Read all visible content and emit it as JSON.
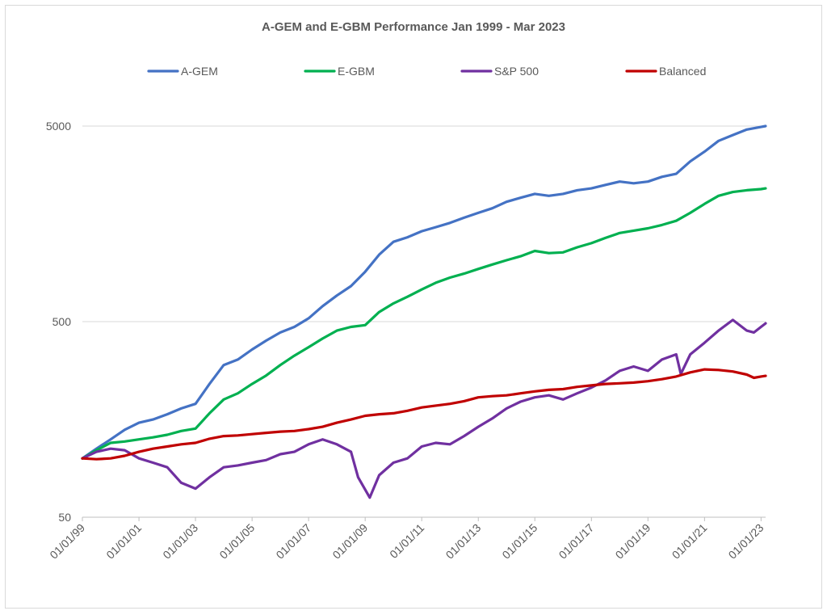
{
  "chart_data": {
    "type": "line",
    "title": "A-GEM and E-GBM Performance Jan 1999 - Mar 2023",
    "xlabel": "",
    "ylabel": "",
    "x_range": [
      "01/01/99",
      "03/01/23"
    ],
    "y_scale": "log",
    "ylim": [
      50,
      5000
    ],
    "y_ticks": [
      "5000",
      "500",
      "50"
    ],
    "x_ticks": [
      "01/01/99",
      "01/01/01",
      "01/01/03",
      "01/01/05",
      "01/01/07",
      "01/01/09",
      "01/01/11",
      "01/01/13",
      "01/01/15",
      "01/01/17",
      "01/01/19",
      "01/01/21",
      "01/01/23"
    ],
    "grid": "horizontal",
    "legend_position": "top",
    "series": [
      {
        "name": "A-GEM",
        "color": "#4472c4",
        "points": [
          [
            "1999-01",
            100
          ],
          [
            "1999-07",
            112
          ],
          [
            "2000-01",
            125
          ],
          [
            "2000-07",
            140
          ],
          [
            "2001-01",
            152
          ],
          [
            "2001-07",
            158
          ],
          [
            "2002-01",
            168
          ],
          [
            "2002-07",
            180
          ],
          [
            "2003-01",
            190
          ],
          [
            "2003-07",
            240
          ],
          [
            "2004-01",
            300
          ],
          [
            "2004-07",
            320
          ],
          [
            "2005-01",
            360
          ],
          [
            "2005-07",
            400
          ],
          [
            "2006-01",
            440
          ],
          [
            "2006-07",
            470
          ],
          [
            "2007-01",
            520
          ],
          [
            "2007-07",
            600
          ],
          [
            "2008-01",
            680
          ],
          [
            "2008-07",
            760
          ],
          [
            "2009-01",
            900
          ],
          [
            "2009-07",
            1100
          ],
          [
            "2010-01",
            1280
          ],
          [
            "2010-07",
            1350
          ],
          [
            "2011-01",
            1450
          ],
          [
            "2011-07",
            1520
          ],
          [
            "2012-01",
            1600
          ],
          [
            "2012-07",
            1700
          ],
          [
            "2013-01",
            1800
          ],
          [
            "2013-07",
            1900
          ],
          [
            "2014-01",
            2050
          ],
          [
            "2014-07",
            2150
          ],
          [
            "2015-01",
            2250
          ],
          [
            "2015-07",
            2200
          ],
          [
            "2016-01",
            2250
          ],
          [
            "2016-07",
            2350
          ],
          [
            "2017-01",
            2400
          ],
          [
            "2017-07",
            2500
          ],
          [
            "2018-01",
            2600
          ],
          [
            "2018-07",
            2550
          ],
          [
            "2019-01",
            2600
          ],
          [
            "2019-07",
            2750
          ],
          [
            "2020-01",
            2850
          ],
          [
            "2020-07",
            3300
          ],
          [
            "2021-01",
            3700
          ],
          [
            "2021-07",
            4200
          ],
          [
            "2022-01",
            4500
          ],
          [
            "2022-07",
            4800
          ],
          [
            "2023-01",
            4950
          ],
          [
            "2023-03",
            5000
          ]
        ]
      },
      {
        "name": "E-GBM",
        "color": "#00b050",
        "points": [
          [
            "1999-01",
            100
          ],
          [
            "1999-07",
            110
          ],
          [
            "2000-01",
            120
          ],
          [
            "2000-07",
            122
          ],
          [
            "2001-01",
            125
          ],
          [
            "2001-07",
            128
          ],
          [
            "2002-01",
            132
          ],
          [
            "2002-07",
            138
          ],
          [
            "2003-01",
            142
          ],
          [
            "2003-07",
            170
          ],
          [
            "2004-01",
            200
          ],
          [
            "2004-07",
            215
          ],
          [
            "2005-01",
            240
          ],
          [
            "2005-07",
            265
          ],
          [
            "2006-01",
            300
          ],
          [
            "2006-07",
            335
          ],
          [
            "2007-01",
            370
          ],
          [
            "2007-07",
            410
          ],
          [
            "2008-01",
            450
          ],
          [
            "2008-07",
            470
          ],
          [
            "2009-01",
            480
          ],
          [
            "2009-07",
            560
          ],
          [
            "2010-01",
            620
          ],
          [
            "2010-07",
            670
          ],
          [
            "2011-01",
            730
          ],
          [
            "2011-07",
            790
          ],
          [
            "2012-01",
            840
          ],
          [
            "2012-07",
            880
          ],
          [
            "2013-01",
            930
          ],
          [
            "2013-07",
            980
          ],
          [
            "2014-01",
            1030
          ],
          [
            "2014-07",
            1080
          ],
          [
            "2015-01",
            1150
          ],
          [
            "2015-07",
            1120
          ],
          [
            "2016-01",
            1130
          ],
          [
            "2016-07",
            1200
          ],
          [
            "2017-01",
            1260
          ],
          [
            "2017-07",
            1340
          ],
          [
            "2018-01",
            1420
          ],
          [
            "2018-07",
            1460
          ],
          [
            "2019-01",
            1500
          ],
          [
            "2019-07",
            1560
          ],
          [
            "2020-01",
            1640
          ],
          [
            "2020-07",
            1800
          ],
          [
            "2021-01",
            2000
          ],
          [
            "2021-07",
            2200
          ],
          [
            "2022-01",
            2300
          ],
          [
            "2022-07",
            2350
          ],
          [
            "2023-01",
            2380
          ],
          [
            "2023-03",
            2400
          ]
        ]
      },
      {
        "name": "S&P 500",
        "color": "#7030a0",
        "points": [
          [
            "1999-01",
            100
          ],
          [
            "1999-07",
            108
          ],
          [
            "2000-01",
            112
          ],
          [
            "2000-07",
            110
          ],
          [
            "2001-01",
            100
          ],
          [
            "2001-07",
            95
          ],
          [
            "2002-01",
            90
          ],
          [
            "2002-07",
            75
          ],
          [
            "2003-01",
            70
          ],
          [
            "2003-07",
            80
          ],
          [
            "2004-01",
            90
          ],
          [
            "2004-07",
            92
          ],
          [
            "2005-01",
            95
          ],
          [
            "2005-07",
            98
          ],
          [
            "2006-01",
            105
          ],
          [
            "2006-07",
            108
          ],
          [
            "2007-01",
            118
          ],
          [
            "2007-07",
            125
          ],
          [
            "2008-01",
            118
          ],
          [
            "2008-07",
            108
          ],
          [
            "2008-10",
            80
          ],
          [
            "2009-03",
            63
          ],
          [
            "2009-07",
            82
          ],
          [
            "2010-01",
            95
          ],
          [
            "2010-07",
            100
          ],
          [
            "2011-01",
            115
          ],
          [
            "2011-07",
            120
          ],
          [
            "2012-01",
            118
          ],
          [
            "2012-07",
            130
          ],
          [
            "2013-01",
            145
          ],
          [
            "2013-07",
            160
          ],
          [
            "2014-01",
            180
          ],
          [
            "2014-07",
            195
          ],
          [
            "2015-01",
            205
          ],
          [
            "2015-07",
            210
          ],
          [
            "2016-01",
            200
          ],
          [
            "2016-07",
            215
          ],
          [
            "2017-01",
            230
          ],
          [
            "2017-07",
            250
          ],
          [
            "2018-01",
            280
          ],
          [
            "2018-07",
            295
          ],
          [
            "2019-01",
            280
          ],
          [
            "2019-07",
            320
          ],
          [
            "2020-01",
            340
          ],
          [
            "2020-03",
            270
          ],
          [
            "2020-07",
            340
          ],
          [
            "2021-01",
            390
          ],
          [
            "2021-07",
            450
          ],
          [
            "2022-01",
            510
          ],
          [
            "2022-07",
            450
          ],
          [
            "2022-10",
            440
          ],
          [
            "2023-01",
            470
          ],
          [
            "2023-03",
            490
          ]
        ]
      },
      {
        "name": "Balanced",
        "color": "#c00000",
        "points": [
          [
            "1999-01",
            100
          ],
          [
            "1999-07",
            99
          ],
          [
            "2000-01",
            100
          ],
          [
            "2000-07",
            103
          ],
          [
            "2001-01",
            108
          ],
          [
            "2001-07",
            112
          ],
          [
            "2002-01",
            115
          ],
          [
            "2002-07",
            118
          ],
          [
            "2003-01",
            120
          ],
          [
            "2003-07",
            126
          ],
          [
            "2004-01",
            130
          ],
          [
            "2004-07",
            131
          ],
          [
            "2005-01",
            133
          ],
          [
            "2005-07",
            135
          ],
          [
            "2006-01",
            137
          ],
          [
            "2006-07",
            138
          ],
          [
            "2007-01",
            141
          ],
          [
            "2007-07",
            145
          ],
          [
            "2008-01",
            152
          ],
          [
            "2008-07",
            158
          ],
          [
            "2009-01",
            165
          ],
          [
            "2009-07",
            168
          ],
          [
            "2010-01",
            170
          ],
          [
            "2010-07",
            175
          ],
          [
            "2011-01",
            182
          ],
          [
            "2011-07",
            186
          ],
          [
            "2012-01",
            190
          ],
          [
            "2012-07",
            196
          ],
          [
            "2013-01",
            205
          ],
          [
            "2013-07",
            208
          ],
          [
            "2014-01",
            210
          ],
          [
            "2014-07",
            215
          ],
          [
            "2015-01",
            220
          ],
          [
            "2015-07",
            224
          ],
          [
            "2016-01",
            226
          ],
          [
            "2016-07",
            232
          ],
          [
            "2017-01",
            236
          ],
          [
            "2017-07",
            240
          ],
          [
            "2018-01",
            242
          ],
          [
            "2018-07",
            244
          ],
          [
            "2019-01",
            248
          ],
          [
            "2019-07",
            254
          ],
          [
            "2020-01",
            262
          ],
          [
            "2020-07",
            275
          ],
          [
            "2021-01",
            285
          ],
          [
            "2021-07",
            283
          ],
          [
            "2022-01",
            278
          ],
          [
            "2022-07",
            268
          ],
          [
            "2022-10",
            258
          ],
          [
            "2023-01",
            262
          ],
          [
            "2023-03",
            264
          ]
        ]
      }
    ]
  }
}
